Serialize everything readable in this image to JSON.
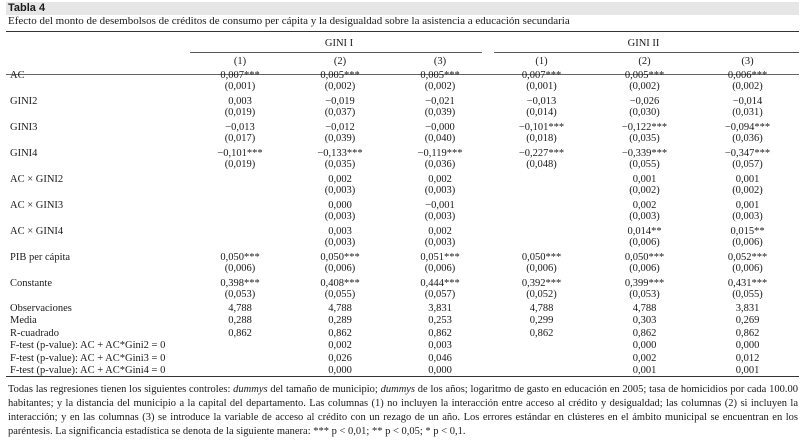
{
  "table": {
    "label": "Tabla 4",
    "caption": "Efecto del monto de desembolsos de créditos de consumo per cápita y la desigualdad sobre la asistencia a educación secundaria",
    "groups": [
      "GINI I",
      "GINI II"
    ],
    "columns": [
      "(1)",
      "(2)",
      "(3)",
      "(1)",
      "(2)",
      "(3)"
    ],
    "rows": [
      {
        "label": "AC",
        "values": [
          "0,007***",
          "0,005***",
          "0,005***",
          "0,007***",
          "0,005***",
          "0,006***"
        ],
        "se": [
          "(0,001)",
          "(0,002)",
          "(0,002)",
          "(0,001)",
          "(0,002)",
          "(0,002)"
        ]
      },
      {
        "label": "GINI2",
        "values": [
          "0,003",
          "−0,019",
          "−0,021",
          "−0,013",
          "−0,026",
          "−0,014"
        ],
        "se": [
          "(0,019)",
          "(0,037)",
          "(0,039)",
          "(0,014)",
          "(0,030)",
          "(0,031)"
        ]
      },
      {
        "label": "GINI3",
        "values": [
          "−0,013",
          "−0,012",
          "−0,000",
          "−0,101***",
          "−0,122***",
          "−0,094***"
        ],
        "se": [
          "(0,017)",
          "(0,039)",
          "(0,040)",
          "(0,018)",
          "(0,035)",
          "(0,036)"
        ]
      },
      {
        "label": "GINI4",
        "values": [
          "−0,101***",
          "−0,133***",
          "−0,119***",
          "−0,227***",
          "−0,339***",
          "−0,347***"
        ],
        "se": [
          "(0,019)",
          "(0,035)",
          "(0,036)",
          "(0,048)",
          "(0,055)",
          "(0,057)"
        ]
      },
      {
        "label": "AC × GINI2",
        "values": [
          "",
          "0,002",
          "0,002",
          "",
          "0,001",
          "0,001"
        ],
        "se": [
          "",
          "(0,003)",
          "(0,003)",
          "",
          "(0,002)",
          "(0,002)"
        ]
      },
      {
        "label": "AC × GINI3",
        "values": [
          "",
          "0,000",
          "−0,001",
          "",
          "0,002",
          "0,001"
        ],
        "se": [
          "",
          "(0,003)",
          "(0,003)",
          "",
          "(0,003)",
          "(0,003)"
        ]
      },
      {
        "label": "AC × GINI4",
        "values": [
          "",
          "0,003",
          "0,002",
          "",
          "0,014**",
          "0,015**"
        ],
        "se": [
          "",
          "(0,003)",
          "(0,003)",
          "",
          "(0,006)",
          "(0,006)"
        ]
      },
      {
        "label": "PIB per cápita",
        "values": [
          "0,050***",
          "0,050***",
          "0,051***",
          "0,050***",
          "0,050***",
          "0,052***"
        ],
        "se": [
          "(0,006)",
          "(0,006)",
          "(0,006)",
          "(0,006)",
          "(0,006)",
          "(0,006)"
        ]
      },
      {
        "label": "Constante",
        "values": [
          "0,398***",
          "0,408***",
          "0,444***",
          "0,392***",
          "0,399***",
          "0,431***"
        ],
        "se": [
          "(0,053)",
          "(0,055)",
          "(0,057)",
          "(0,052)",
          "(0,053)",
          "(0,055)"
        ]
      }
    ],
    "stats": [
      {
        "label": "Observaciones",
        "values": [
          "4,788",
          "4,788",
          "3,831",
          "4,788",
          "4,788",
          "3,831"
        ]
      },
      {
        "label": "Media",
        "values": [
          "0,288",
          "0,289",
          "0,253",
          "0,299",
          "0,303",
          "0,269"
        ]
      },
      {
        "label": "R-cuadrado",
        "values": [
          "0,862",
          "0,862",
          "0,862",
          "0,862",
          "0,862",
          "0,862"
        ]
      },
      {
        "label": "F-test (p-value): AC + AC*Gini2 = 0",
        "values": [
          "",
          "0,002",
          "0,003",
          "",
          "0,000",
          "0,000"
        ]
      },
      {
        "label": "F-test (p-value): AC + AC*Gini3 = 0",
        "values": [
          "",
          "0,026",
          "0,046",
          "",
          "0,002",
          "0,012"
        ]
      },
      {
        "label": "F-test (p-value): AC + AC*Gini4 = 0",
        "values": [
          "",
          "0,000",
          "0,000",
          "",
          "0,001",
          "0,001"
        ]
      }
    ]
  },
  "notes": {
    "p1": "Todas las regresiones tienen los siguientes controles: ",
    "i1": "dummys",
    "p2": " del tamaño de municipio; ",
    "i2": "dummys",
    "p3": " de los años; logaritmo de gasto en educación en 2005; tasa de homicidios por cada 100.00 habitantes; y la distancia del municipio a la capital del departamento. Las columnas (1) no incluyen la interacción entre acceso al crédito y desigualdad; las columnas (2) si incluyen la interacción; y en las columnas (3) se introduce la variable de acceso al crédito con un rezago de un año. Los errores estándar en clústeres en el ámbito municipal se encuentran en los paréntesis. La significancia estadística se denota de la siguiente manera: *** p < 0,01; ** p < 0,05; * p < 0,1."
  }
}
